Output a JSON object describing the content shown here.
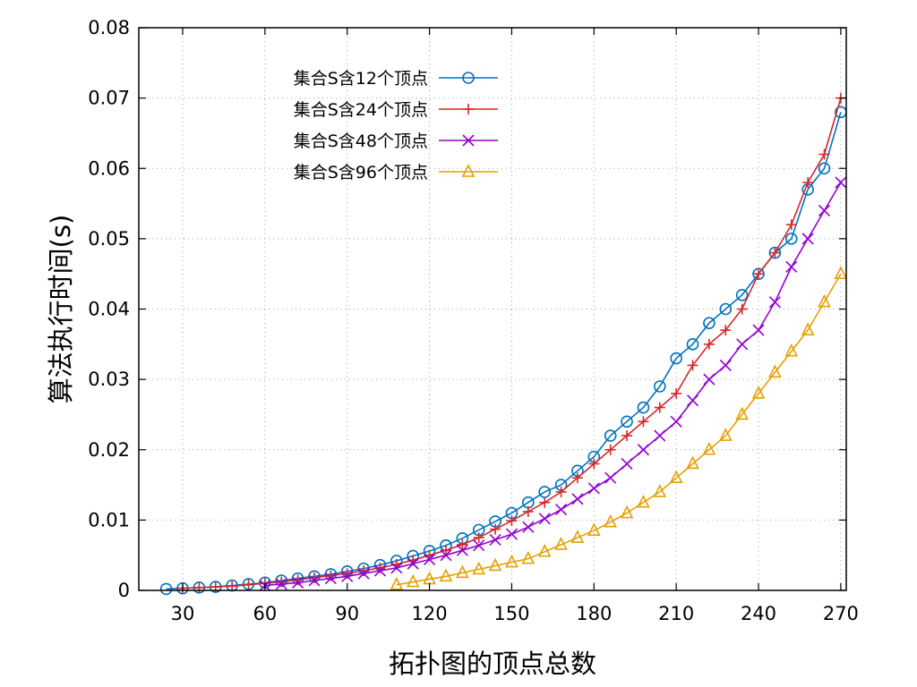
{
  "chart_data": {
    "type": "line",
    "xlabel": "拓扑图的顶点总数",
    "ylabel": "算法执行时间(s)",
    "xlim": [
      14,
      272
    ],
    "ylim": [
      0,
      0.08
    ],
    "xticks": [
      30,
      60,
      90,
      120,
      150,
      180,
      210,
      240,
      270
    ],
    "xtick_labels": [
      "30",
      "60",
      "90",
      "120",
      "150",
      "180",
      "210",
      "240",
      "270"
    ],
    "yticks": [
      0,
      0.01,
      0.02,
      0.03,
      0.04,
      0.05,
      0.06,
      0.07,
      0.08
    ],
    "ytick_labels": [
      "0",
      "0.01",
      "0.02",
      "0.03",
      "0.04",
      "0.05",
      "0.06",
      "0.07",
      "0.08"
    ],
    "grid": true,
    "legend_position": "top-left",
    "series": [
      {
        "name": "集合S含12个顶点",
        "color": "#0072bd",
        "marker": "circle",
        "x": [
          24,
          30,
          36,
          42,
          48,
          54,
          60,
          66,
          72,
          78,
          84,
          90,
          96,
          102,
          108,
          114,
          120,
          126,
          132,
          138,
          144,
          150,
          156,
          162,
          168,
          174,
          180,
          186,
          192,
          198,
          204,
          210,
          216,
          222,
          228,
          234,
          240,
          246,
          252,
          258,
          264,
          270
        ],
        "y": [
          0.0002,
          0.0003,
          0.0004,
          0.0005,
          0.0007,
          0.0009,
          0.0011,
          0.0014,
          0.0017,
          0.002,
          0.0023,
          0.0027,
          0.0031,
          0.0036,
          0.0042,
          0.0049,
          0.0056,
          0.0064,
          0.0074,
          0.0086,
          0.0098,
          0.011,
          0.0125,
          0.014,
          0.015,
          0.017,
          0.019,
          0.022,
          0.024,
          0.026,
          0.029,
          0.033,
          0.035,
          0.038,
          0.04,
          0.042,
          0.045,
          0.048,
          0.05,
          0.057,
          0.06,
          0.068
        ]
      },
      {
        "name": "集合S含24个顶点",
        "color": "#d62728",
        "marker": "plus",
        "x": [
          30,
          36,
          42,
          48,
          54,
          60,
          66,
          72,
          78,
          84,
          90,
          96,
          102,
          108,
          114,
          120,
          126,
          132,
          138,
          144,
          150,
          156,
          162,
          168,
          174,
          180,
          186,
          192,
          198,
          204,
          210,
          216,
          222,
          228,
          234,
          240,
          246,
          252,
          258,
          264,
          270
        ],
        "y": [
          0.0003,
          0.0004,
          0.0005,
          0.0006,
          0.0008,
          0.001,
          0.0012,
          0.0015,
          0.0018,
          0.0021,
          0.0024,
          0.0028,
          0.0032,
          0.0037,
          0.0043,
          0.005,
          0.0057,
          0.0065,
          0.0075,
          0.0087,
          0.0099,
          0.0112,
          0.0125,
          0.014,
          0.016,
          0.018,
          0.02,
          0.022,
          0.024,
          0.026,
          0.028,
          0.032,
          0.035,
          0.037,
          0.04,
          0.045,
          0.048,
          0.052,
          0.058,
          0.062,
          0.07
        ]
      },
      {
        "name": "集合S含48个顶点",
        "color": "#9400d3",
        "marker": "cross",
        "x": [
          60,
          66,
          72,
          78,
          84,
          90,
          96,
          102,
          108,
          114,
          120,
          126,
          132,
          138,
          144,
          150,
          156,
          162,
          168,
          174,
          180,
          186,
          192,
          198,
          204,
          210,
          216,
          222,
          228,
          234,
          240,
          246,
          252,
          258,
          264,
          270
        ],
        "y": [
          0.0007,
          0.0009,
          0.0011,
          0.0014,
          0.0017,
          0.002,
          0.0024,
          0.0028,
          0.0032,
          0.0038,
          0.0044,
          0.005,
          0.0057,
          0.0064,
          0.0072,
          0.008,
          0.009,
          0.0102,
          0.0115,
          0.013,
          0.0145,
          0.016,
          0.018,
          0.02,
          0.022,
          0.024,
          0.027,
          0.03,
          0.032,
          0.035,
          0.037,
          0.041,
          0.046,
          0.05,
          0.054,
          0.058
        ]
      },
      {
        "name": "集合S含96个顶点",
        "color": "#e69f00",
        "marker": "triangle",
        "x": [
          108,
          114,
          120,
          126,
          132,
          138,
          144,
          150,
          156,
          162,
          168,
          174,
          180,
          186,
          192,
          198,
          204,
          210,
          216,
          222,
          228,
          234,
          240,
          246,
          252,
          258,
          264,
          270
        ],
        "y": [
          0.0008,
          0.0012,
          0.0016,
          0.002,
          0.0025,
          0.003,
          0.0035,
          0.004,
          0.0045,
          0.0055,
          0.0065,
          0.0075,
          0.0085,
          0.0097,
          0.011,
          0.0125,
          0.014,
          0.016,
          0.018,
          0.02,
          0.022,
          0.025,
          0.028,
          0.031,
          0.034,
          0.037,
          0.041,
          0.045
        ]
      }
    ]
  }
}
